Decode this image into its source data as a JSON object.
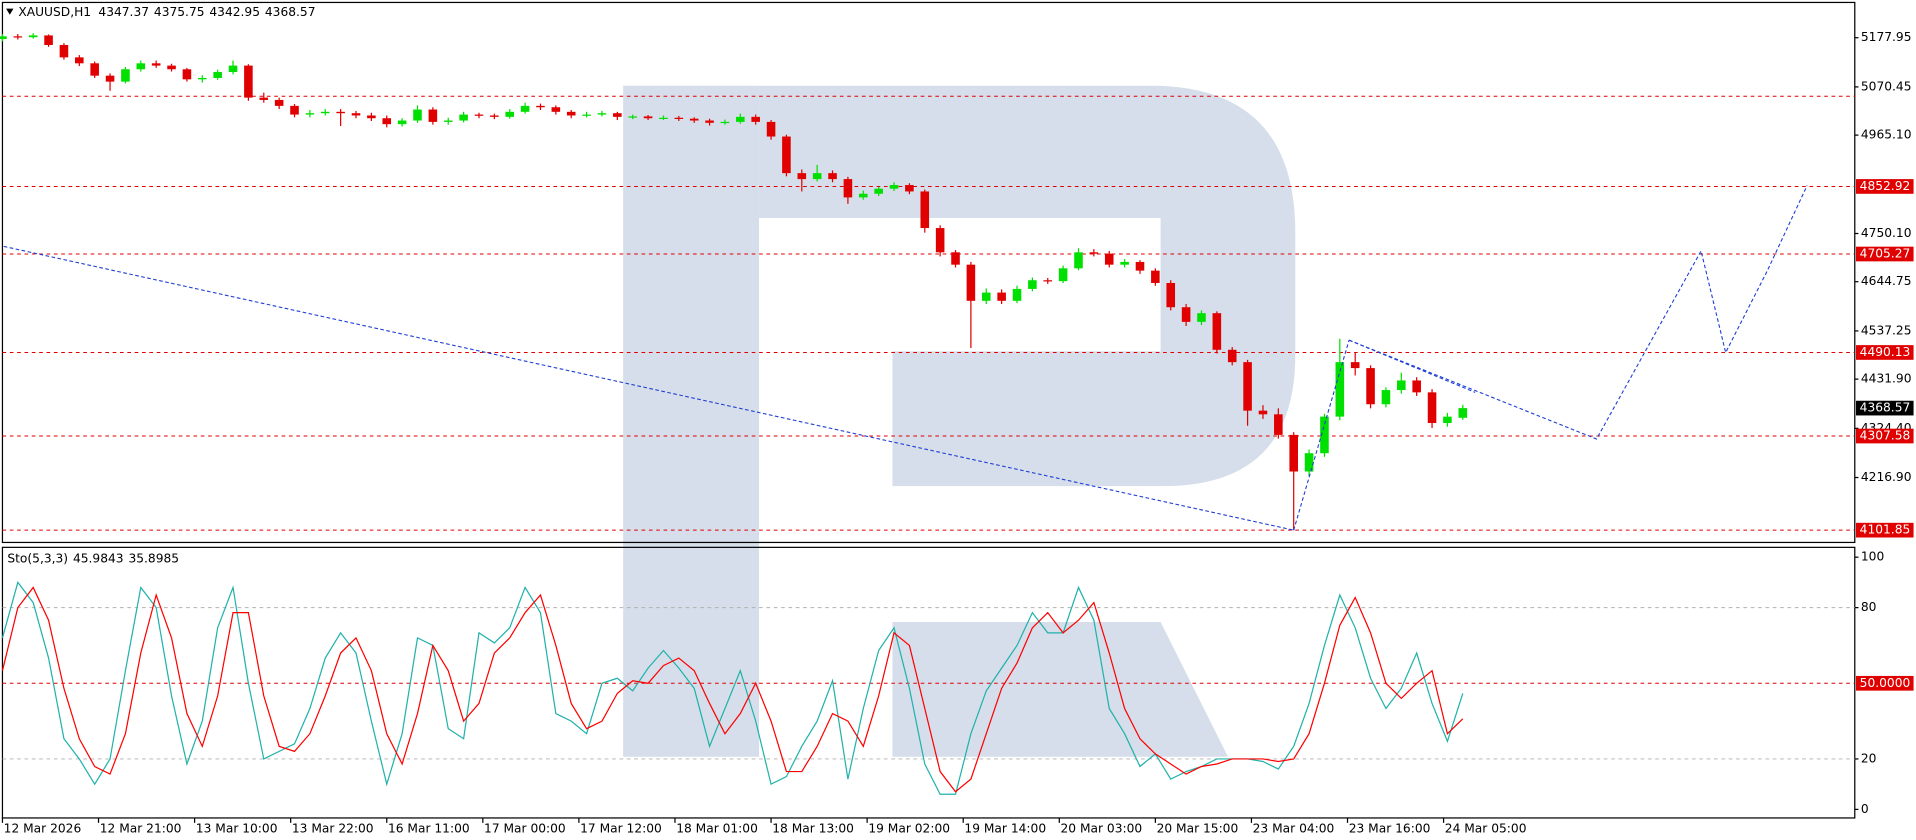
{
  "chart_data": [
    {
      "type": "candlestick",
      "title": "XAUUSD,H1",
      "up_color": "#00e000",
      "down_color": "#e00000",
      "level_color": "#e00000",
      "line_color": "#1f3fd6",
      "xlim": [
        0,
        120.5
      ],
      "ylim": [
        4075,
        5255
      ],
      "yticks": [
        5177.95,
        5070.45,
        {
          "value": 4965.1,
          "label": "4965.10"
        },
        {
          "value": 4750.1,
          "label": "4750.10"
        },
        4644.75,
        4537.25,
        {
          "value": 4431.9,
          "label": "4431.90"
        },
        {
          "value": 4324.4,
          "label": "4324.40"
        },
        {
          "value": 4216.9,
          "label": "4216.90"
        }
      ],
      "xticks": [
        {
          "value": 0,
          "label": "12 Mar 2026"
        },
        {
          "value": 6.25,
          "label": "12 Mar 21:00"
        },
        {
          "value": 12.5,
          "label": "13 Mar 10:00"
        },
        {
          "value": 18.75,
          "label": "13 Mar 22:00"
        },
        {
          "value": 25,
          "label": "16 Mar 11:00"
        },
        {
          "value": 31.25,
          "label": "17 Mar 00:00"
        },
        {
          "value": 37.5,
          "label": "17 Mar 12:00"
        },
        {
          "value": 43.75,
          "label": "18 Mar 01:00"
        },
        {
          "value": 50,
          "label": "18 Mar 13:00"
        },
        {
          "value": 56.25,
          "label": "19 Mar 02:00"
        },
        {
          "value": 62.5,
          "label": "19 Mar 14:00"
        },
        {
          "value": 68.75,
          "label": "20 Mar 03:00"
        },
        {
          "value": 75,
          "label": "20 Mar 15:00"
        },
        {
          "value": 81.25,
          "label": "23 Mar 04:00"
        },
        {
          "value": 87.5,
          "label": "23 Mar 16:00"
        },
        {
          "value": 93.75,
          "label": "24 Mar 05:00"
        }
      ],
      "levels": [
        4852.92,
        4705.27,
        4490.13,
        4307.58,
        4101.85
      ],
      "unlabeled_levels": [
        5050
      ],
      "trend_lines": [
        {
          "x": [
            0.08,
            84
          ],
          "y": [
            4722,
            4101.85
          ]
        },
        {
          "x": [
            84,
            87.6
          ],
          "y": [
            4101.85,
            4517
          ]
        },
        {
          "x": [
            87.6,
            95.8
          ],
          "y": [
            4517,
            4403
          ]
        },
        {
          "x": [
            87.6,
            103.7,
            110.5,
            112.1,
            114.8,
            117.4
          ],
          "y": [
            4517,
            4301,
            4712,
            4490,
            4668,
            4855
          ]
        }
      ],
      "ohlc": [
        [
          5175,
          5186,
          5170,
          5181
        ],
        [
          5181,
          5186,
          5174,
          5179
        ],
        [
          5179,
          5188,
          5176,
          5183
        ],
        [
          5183,
          5185,
          5158,
          5162
        ],
        [
          5162,
          5166,
          5130,
          5135
        ],
        [
          5135,
          5140,
          5116,
          5122
        ],
        [
          5122,
          5126,
          5090,
          5095
        ],
        [
          5095,
          5100,
          5062,
          5082
        ],
        [
          5082,
          5114,
          5078,
          5109
        ],
        [
          5109,
          5128,
          5104,
          5122
        ],
        [
          5122,
          5128,
          5112,
          5117
        ],
        [
          5117,
          5121,
          5104,
          5109
        ],
        [
          5109,
          5112,
          5082,
          5087
        ],
        [
          5087,
          5096,
          5080,
          5090
        ],
        [
          5090,
          5108,
          5086,
          5103
        ],
        [
          5103,
          5128,
          5098,
          5117
        ],
        [
          5117,
          5120,
          5040,
          5047
        ],
        [
          5047,
          5058,
          5036,
          5042
        ],
        [
          5042,
          5047,
          5022,
          5029
        ],
        [
          5029,
          5033,
          5004,
          5010
        ],
        [
          5010,
          5020,
          5004,
          5013
        ],
        [
          5013,
          5022,
          5008,
          5016
        ],
        [
          5016,
          5022,
          4985,
          5013
        ],
        [
          5013,
          5018,
          5002,
          5008
        ],
        [
          5008,
          5014,
          4996,
          5002
        ],
        [
          5002,
          5008,
          4982,
          4989
        ],
        [
          4989,
          5002,
          4984,
          4997
        ],
        [
          4997,
          5030,
          4992,
          5021
        ],
        [
          5021,
          5026,
          4988,
          4994
        ],
        [
          4994,
          5003,
          4988,
          4997
        ],
        [
          4997,
          5016,
          4993,
          5010
        ],
        [
          5010,
          5014,
          5002,
          5008
        ],
        [
          5008,
          5012,
          5000,
          5005
        ],
        [
          5005,
          5022,
          5001,
          5016
        ],
        [
          5016,
          5036,
          5012,
          5029
        ],
        [
          5029,
          5034,
          5020,
          5026
        ],
        [
          5026,
          5030,
          5010,
          5016
        ],
        [
          5016,
          5020,
          5002,
          5008
        ],
        [
          5008,
          5016,
          5004,
          5010
        ],
        [
          5010,
          5018,
          5006,
          5013
        ],
        [
          5013,
          5016,
          4998,
          5005
        ],
        [
          5005,
          5010,
          5000,
          5006
        ],
        [
          5006,
          5009,
          4998,
          5002
        ],
        [
          5002,
          5008,
          4998,
          5003
        ],
        [
          5003,
          5007,
          4996,
          5001
        ],
        [
          5001,
          5004,
          4992,
          4997
        ],
        [
          4997,
          5001,
          4986,
          4992
        ],
        [
          4992,
          4999,
          4988,
          4994
        ],
        [
          4994,
          5012,
          4990,
          5005
        ],
        [
          5005,
          5010,
          4988,
          4994
        ],
        [
          4994,
          4998,
          4955,
          4962
        ],
        [
          4962,
          4966,
          4875,
          4882
        ],
        [
          4882,
          4890,
          4842,
          4869
        ],
        [
          4869,
          4900,
          4864,
          4882
        ],
        [
          4882,
          4888,
          4862,
          4869
        ],
        [
          4869,
          4874,
          4815,
          4829
        ],
        [
          4829,
          4844,
          4824,
          4837
        ],
        [
          4837,
          4852,
          4832,
          4848
        ],
        [
          4848,
          4862,
          4843,
          4856
        ],
        [
          4856,
          4860,
          4836,
          4842
        ],
        [
          4842,
          4846,
          4752,
          4762
        ],
        [
          4762,
          4768,
          4700,
          4709
        ],
        [
          4709,
          4714,
          4676,
          4682
        ],
        [
          4682,
          4688,
          4500,
          4603
        ],
        [
          4603,
          4630,
          4596,
          4621
        ],
        [
          4621,
          4628,
          4596,
          4603
        ],
        [
          4603,
          4636,
          4598,
          4629
        ],
        [
          4629,
          4654,
          4624,
          4648
        ],
        [
          4648,
          4653,
          4640,
          4646
        ],
        [
          4646,
          4680,
          4642,
          4674
        ],
        [
          4674,
          4718,
          4670,
          4709
        ],
        [
          4709,
          4716,
          4700,
          4706
        ],
        [
          4706,
          4712,
          4676,
          4682
        ],
        [
          4682,
          4694,
          4676,
          4688
        ],
        [
          4688,
          4692,
          4662,
          4669
        ],
        [
          4669,
          4674,
          4636,
          4642
        ],
        [
          4642,
          4648,
          4582,
          4589
        ],
        [
          4589,
          4596,
          4548,
          4557
        ],
        [
          4557,
          4582,
          4550,
          4576
        ],
        [
          4576,
          4580,
          4488,
          4496
        ],
        [
          4496,
          4502,
          4462,
          4469
        ],
        [
          4469,
          4474,
          4330,
          4363
        ],
        [
          4363,
          4375,
          4345,
          4355
        ],
        [
          4355,
          4368,
          4302,
          4310
        ],
        [
          4310,
          4316,
          4101.85,
          4230
        ],
        [
          4230,
          4278,
          4220,
          4270
        ],
        [
          4270,
          4356,
          4262,
          4350
        ],
        [
          4350,
          4520,
          4342,
          4469
        ],
        [
          4469,
          4490,
          4440,
          4456
        ],
        [
          4456,
          4462,
          4368,
          4377
        ],
        [
          4377,
          4414,
          4370,
          4408
        ],
        [
          4408,
          4446,
          4400,
          4429
        ],
        [
          4429,
          4436,
          4395,
          4403
        ],
        [
          4403,
          4410,
          4325,
          4336
        ],
        [
          4336,
          4358,
          4328,
          4350
        ],
        [
          4347.37,
          4375.75,
          4342.95,
          4368.57
        ]
      ]
    },
    {
      "type": "line",
      "title": "Sto(5,3,3)",
      "xlim": [
        0,
        120.5
      ],
      "ylim": [
        -3.4,
        103.9
      ],
      "yticks": [
        0,
        20,
        80,
        100
      ],
      "levels": [
        20,
        {
          "value": 50,
          "label": "50.0000"
        },
        80
      ],
      "level_color": "#e00000",
      "guide_color": "#b0b0b0",
      "series": [
        {
          "color": "#20b2aa",
          "values": [
            68,
            90,
            82,
            60,
            28,
            20,
            10,
            20,
            55,
            88,
            80,
            45,
            18,
            35,
            72,
            88,
            50,
            20,
            23,
            26,
            40,
            60,
            70,
            62,
            35,
            10,
            30,
            68,
            65,
            32,
            28,
            70,
            66,
            72,
            88,
            78,
            38,
            35,
            30,
            50,
            52,
            47,
            56,
            63,
            56,
            48,
            25,
            40,
            55,
            35,
            10,
            13,
            25,
            35,
            51,
            12,
            40,
            63,
            72,
            48,
            18,
            6,
            6,
            30,
            47,
            56,
            65,
            78,
            70,
            70,
            88,
            75,
            40,
            30,
            17,
            22,
            12,
            15,
            17,
            20,
            20,
            20,
            19,
            16,
            25,
            42,
            65,
            85,
            72,
            52,
            40,
            48,
            62,
            42,
            27,
            45.9843
          ]
        },
        {
          "color": "#ff0000",
          "values": [
            55,
            80,
            88,
            75,
            48,
            28,
            17,
            14,
            30,
            62,
            85,
            68,
            38,
            25,
            45,
            78,
            78,
            45,
            25,
            23,
            30,
            45,
            62,
            68,
            55,
            30,
            18,
            38,
            65,
            55,
            35,
            42,
            62,
            68,
            78,
            85,
            65,
            42,
            32,
            35,
            46,
            51,
            50,
            57,
            60,
            55,
            42,
            30,
            38,
            50,
            35,
            15,
            15,
            25,
            38,
            35,
            25,
            45,
            70,
            65,
            40,
            15,
            7,
            12,
            30,
            48,
            58,
            72,
            78,
            70,
            75,
            82,
            62,
            40,
            28,
            22,
            18,
            14,
            17,
            18,
            20,
            20,
            20,
            19,
            20,
            30,
            50,
            73,
            84,
            70,
            50,
            44,
            50,
            55,
            30,
            35.8985
          ]
        }
      ]
    }
  ]
}
